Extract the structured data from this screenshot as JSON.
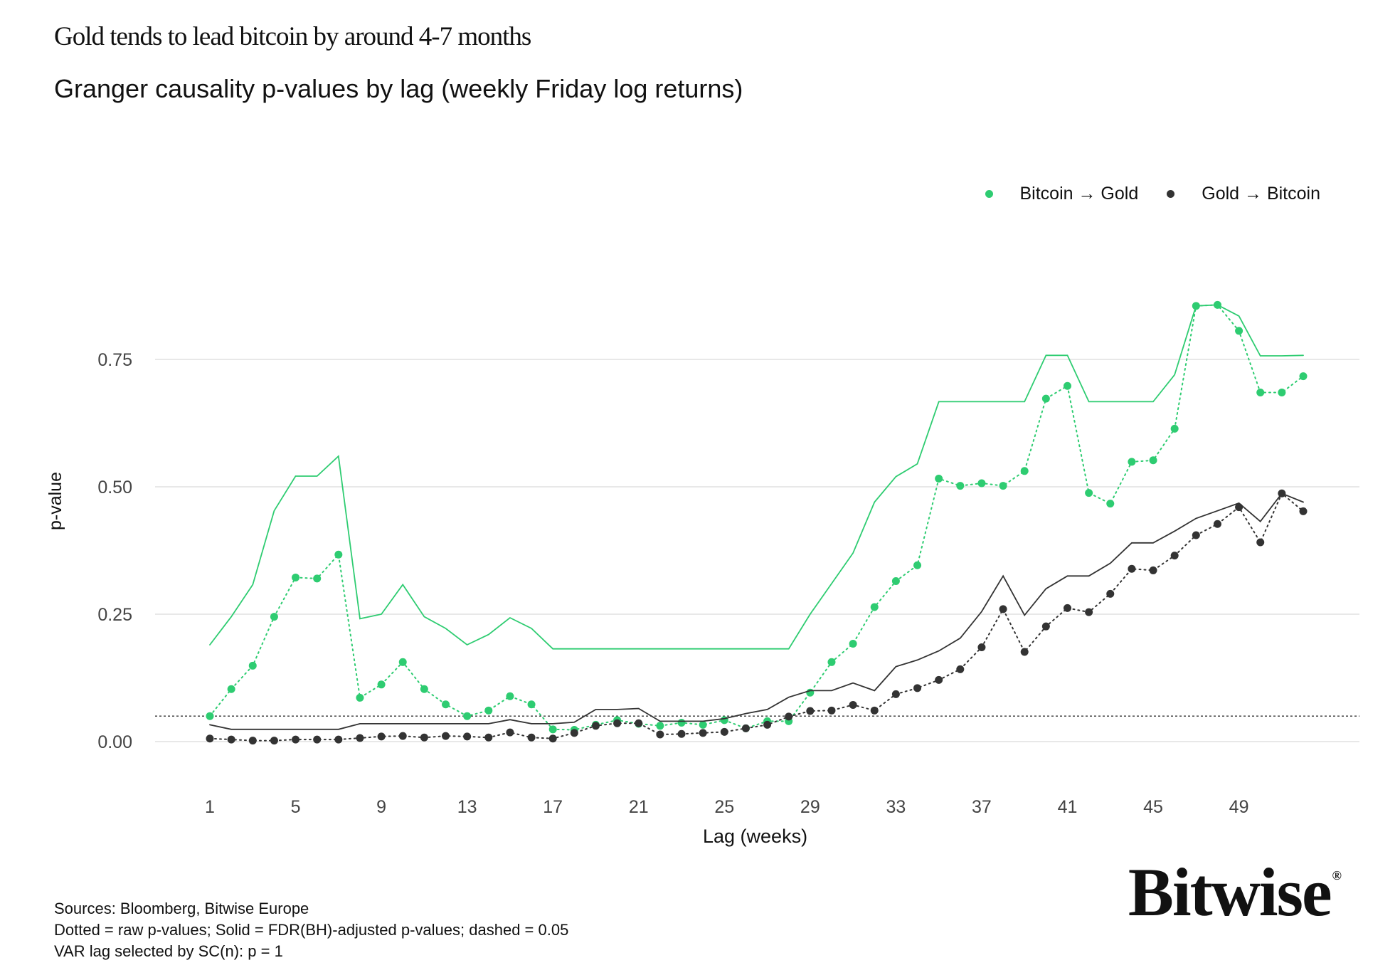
{
  "header": {
    "title": "Gold tends to lead bitcoin by around 4-7 months",
    "subtitle": "Granger causality p-values by lag (weekly Friday log returns)"
  },
  "legend": [
    {
      "label": "Bitcoin → Gold",
      "color": "#2ecc71"
    },
    {
      "label": "Gold → Bitcoin",
      "color": "#333333"
    }
  ],
  "footer": {
    "line1": "Sources: Bloomberg, Bitwise Europe",
    "line2": "Dotted = raw p-values; Solid = FDR(BH)-adjusted p-values; dashed = 0.05",
    "line3": "VAR lag selected by SC(n): p = 1"
  },
  "logo": {
    "text": "Bitwise",
    "mark": "®"
  },
  "chart_data": {
    "type": "line",
    "title": "Granger causality p-values by lag (weekly Friday log returns)",
    "xlabel": "Lag (weeks)",
    "ylabel": "p-value",
    "xlim": [
      1,
      52
    ],
    "ylim": [
      -0.05,
      0.9
    ],
    "x_ticks": [
      1,
      5,
      9,
      13,
      17,
      21,
      25,
      29,
      33,
      37,
      41,
      45,
      49
    ],
    "y_ticks": [
      0.0,
      0.25,
      0.5,
      0.75
    ],
    "y_tick_labels": [
      "0.00",
      "0.25",
      "0.50",
      "0.75"
    ],
    "threshold": 0.05,
    "grid": "horizontal",
    "legend_position": "top-right",
    "x": [
      1,
      2,
      3,
      4,
      5,
      6,
      7,
      8,
      9,
      10,
      11,
      12,
      13,
      14,
      15,
      16,
      17,
      18,
      19,
      20,
      21,
      22,
      23,
      24,
      25,
      26,
      27,
      28,
      29,
      30,
      31,
      32,
      33,
      34,
      35,
      36,
      37,
      38,
      39,
      40,
      41,
      42,
      43,
      44,
      45,
      46,
      47,
      48,
      49,
      50,
      51,
      52
    ],
    "series": [
      {
        "name": "Bitcoin → Gold (raw)",
        "color": "#2ecc71",
        "style": "dotted",
        "values": [
          0.05,
          0.103,
          0.149,
          0.245,
          0.322,
          0.32,
          0.367,
          0.086,
          0.112,
          0.156,
          0.103,
          0.073,
          0.05,
          0.061,
          0.089,
          0.073,
          0.024,
          0.023,
          0.033,
          0.042,
          0.035,
          0.031,
          0.037,
          0.033,
          0.042,
          0.026,
          0.04,
          0.04,
          0.096,
          0.156,
          0.192,
          0.264,
          0.315,
          0.346,
          0.516,
          0.502,
          0.507,
          0.502,
          0.531,
          0.673,
          0.698,
          0.488,
          0.467,
          0.549,
          0.552,
          0.614,
          0.855,
          0.857,
          0.806,
          0.685,
          0.685,
          0.717
        ]
      },
      {
        "name": "Bitcoin → Gold (FDR-adjusted)",
        "color": "#2ecc71",
        "style": "solid",
        "values": [
          0.19,
          0.245,
          0.308,
          0.453,
          0.521,
          0.521,
          0.56,
          0.241,
          0.25,
          0.308,
          0.245,
          0.222,
          0.19,
          0.21,
          0.243,
          0.222,
          0.182,
          0.182,
          0.182,
          0.182,
          0.182,
          0.182,
          0.182,
          0.182,
          0.182,
          0.182,
          0.182,
          0.182,
          0.25,
          0.31,
          0.37,
          0.47,
          0.52,
          0.545,
          0.667,
          0.667,
          0.667,
          0.667,
          0.667,
          0.758,
          0.758,
          0.667,
          0.667,
          0.667,
          0.667,
          0.72,
          0.855,
          0.857,
          0.835,
          0.757,
          0.757,
          0.758
        ]
      },
      {
        "name": "Gold → Bitcoin (raw)",
        "color": "#333333",
        "style": "dotted",
        "values": [
          0.006,
          0.004,
          0.002,
          0.002,
          0.004,
          0.004,
          0.004,
          0.007,
          0.01,
          0.011,
          0.008,
          0.011,
          0.01,
          0.008,
          0.018,
          0.008,
          0.006,
          0.017,
          0.031,
          0.036,
          0.036,
          0.014,
          0.015,
          0.017,
          0.019,
          0.026,
          0.033,
          0.049,
          0.06,
          0.061,
          0.072,
          0.061,
          0.093,
          0.105,
          0.121,
          0.142,
          0.185,
          0.26,
          0.176,
          0.226,
          0.262,
          0.254,
          0.29,
          0.339,
          0.336,
          0.365,
          0.405,
          0.427,
          0.46,
          0.391,
          0.487,
          0.452
        ]
      },
      {
        "name": "Gold → Bitcoin (FDR-adjusted)",
        "color": "#333333",
        "style": "solid",
        "values": [
          0.033,
          0.024,
          0.024,
          0.024,
          0.024,
          0.024,
          0.024,
          0.035,
          0.035,
          0.035,
          0.035,
          0.035,
          0.035,
          0.035,
          0.043,
          0.035,
          0.035,
          0.038,
          0.063,
          0.063,
          0.065,
          0.04,
          0.04,
          0.04,
          0.045,
          0.055,
          0.063,
          0.087,
          0.1,
          0.1,
          0.115,
          0.1,
          0.147,
          0.16,
          0.178,
          0.203,
          0.255,
          0.325,
          0.248,
          0.3,
          0.325,
          0.325,
          0.35,
          0.39,
          0.39,
          0.413,
          0.438,
          0.453,
          0.468,
          0.432,
          0.487,
          0.47
        ]
      }
    ]
  }
}
